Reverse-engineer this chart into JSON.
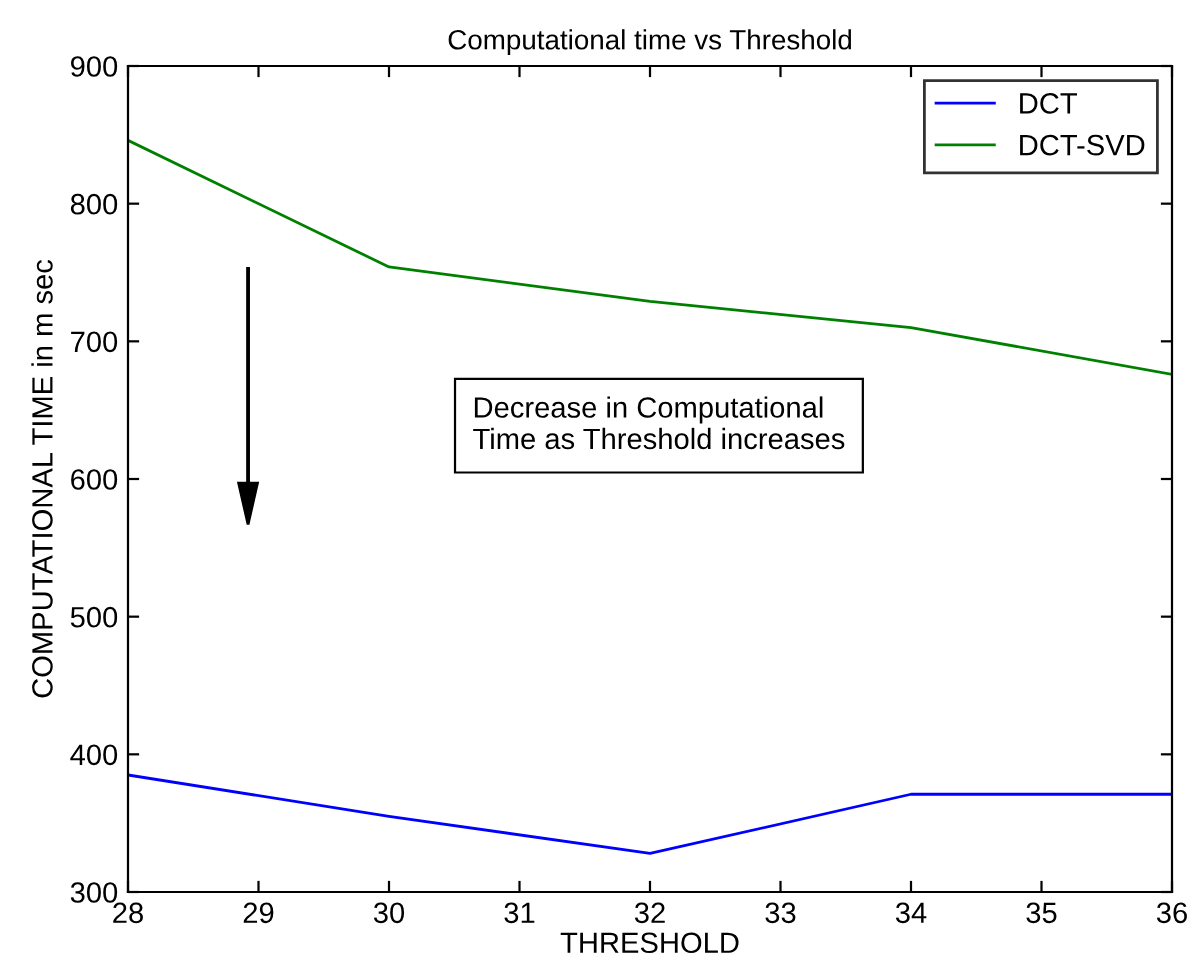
{
  "chart_data": {
    "type": "line",
    "title": "Computational time vs Threshold",
    "xlabel": "THRESHOLD",
    "ylabel": "COMPUTATIONAL TIME in m sec",
    "x": [
      28,
      30,
      32,
      34,
      36
    ],
    "series": [
      {
        "name": "DCT",
        "color": "#0000ff",
        "values": [
          385,
          355,
          328,
          371,
          371
        ]
      },
      {
        "name": "DCT-SVD",
        "color": "#008000",
        "values": [
          846,
          754,
          729,
          710,
          676
        ]
      }
    ],
    "annotations": [
      "Decrease in Computational\nTime as Threshold increases"
    ],
    "xlim": [
      28,
      36
    ],
    "xticks": [
      28,
      29,
      30,
      31,
      32,
      33,
      34,
      35,
      36
    ],
    "ylim": [
      300,
      900
    ],
    "yticks": [
      300,
      400,
      500,
      600,
      700,
      800,
      900
    ],
    "grid": false,
    "legend": "top right"
  }
}
